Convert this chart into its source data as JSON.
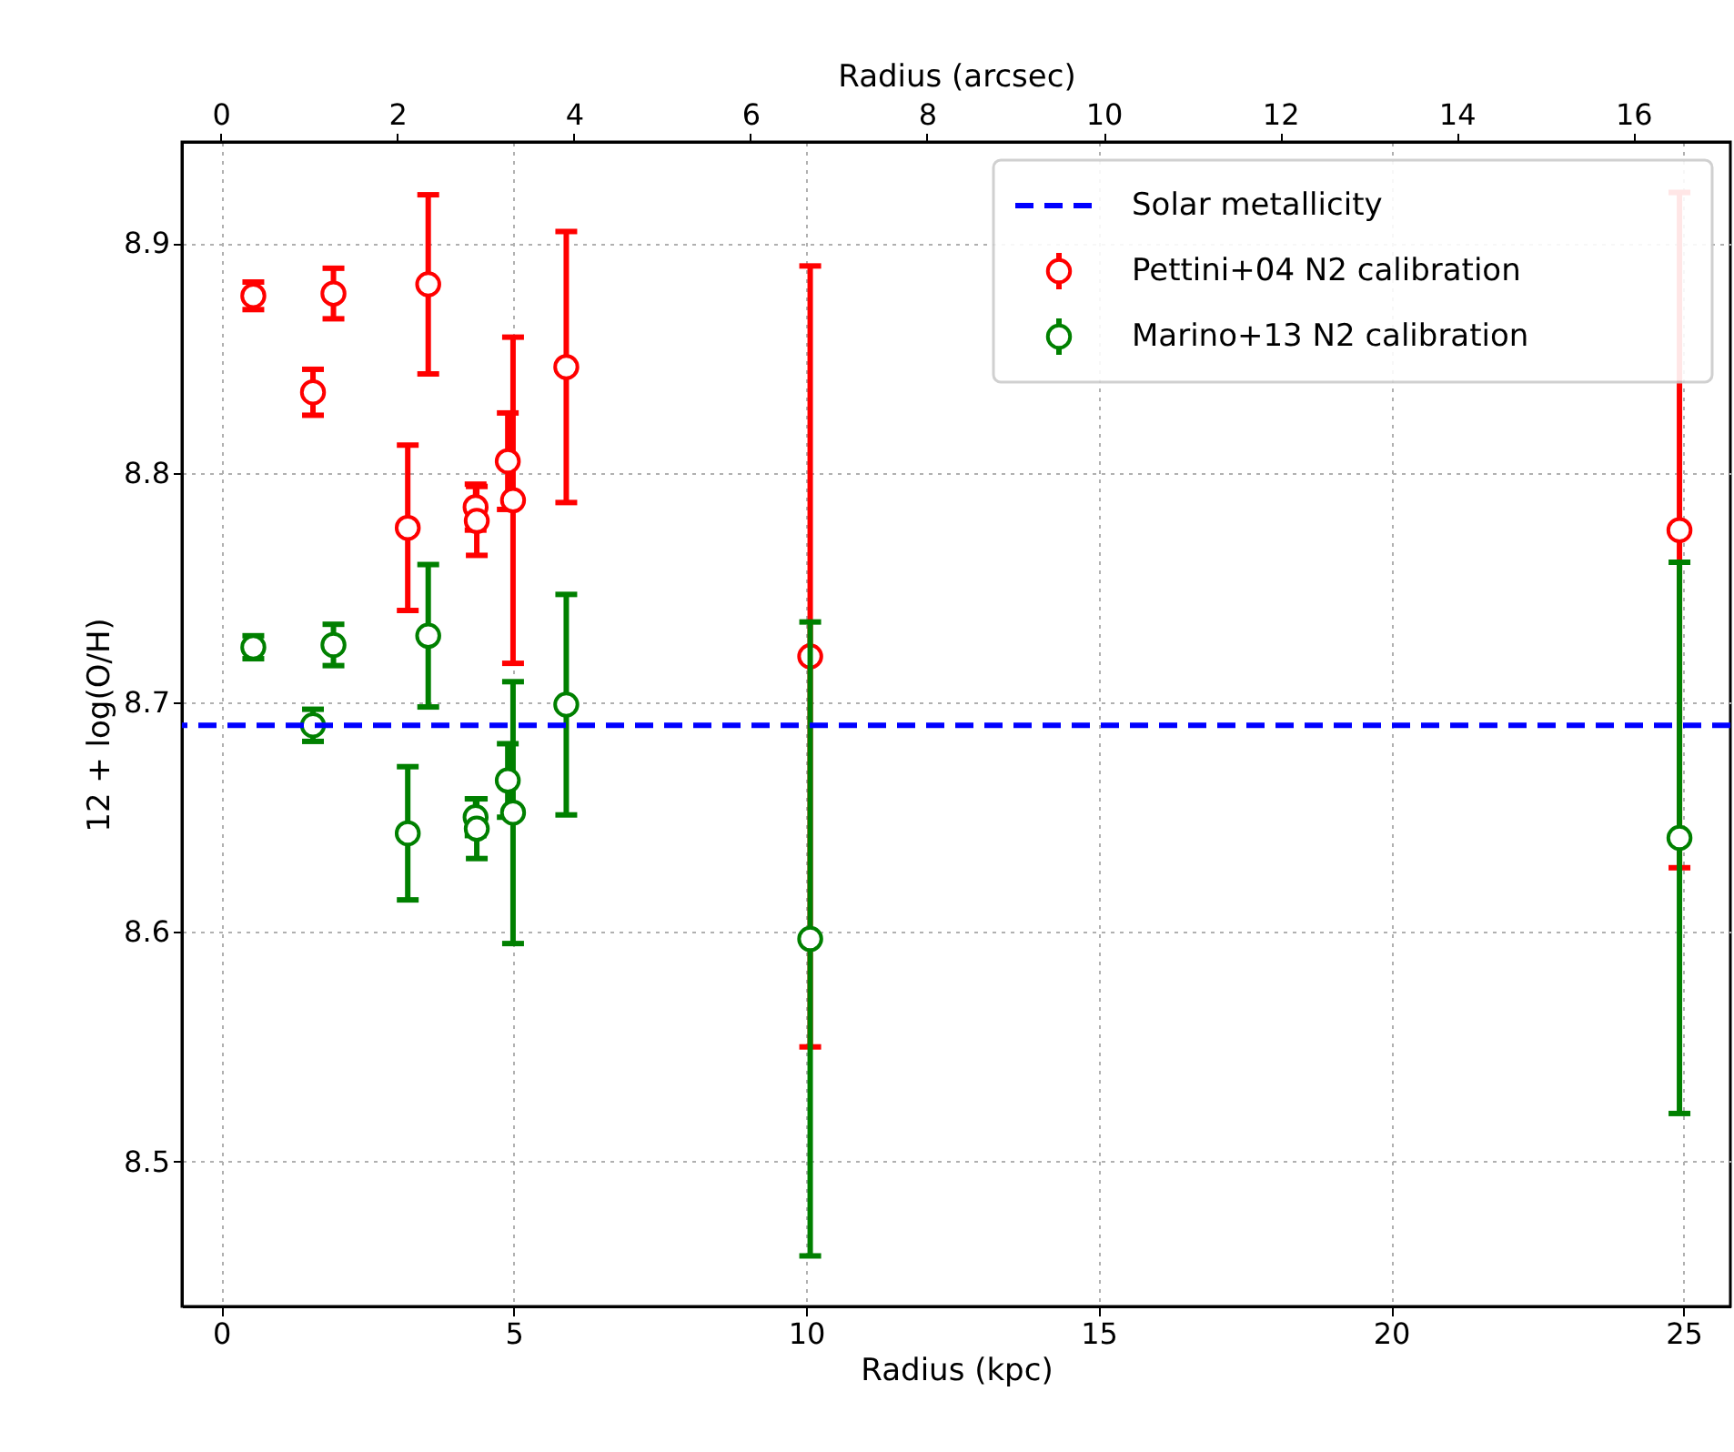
{
  "chart_data": {
    "type": "scatter",
    "xlabel": "Radius (kpc)",
    "ylabel": "12 + log(O/H)",
    "x2label": "Radius (arcsec)",
    "xlim": [
      -0.67,
      25.8
    ],
    "xticks": [
      0,
      5,
      10,
      15,
      20,
      25
    ],
    "x2lim": [
      -0.44,
      17.1
    ],
    "x2ticks": [
      0,
      2,
      4,
      6,
      8,
      10,
      12,
      14,
      16
    ],
    "ylim": [
      8.437,
      8.944
    ],
    "yticks": [
      8.5,
      8.6,
      8.7,
      8.8,
      8.9
    ],
    "grid": true,
    "legend": "top right",
    "marker": "circle",
    "ref_lines": [
      {
        "axis": "y",
        "value": 8.69,
        "label": "Solar metallicity",
        "color": "#0000ff",
        "line_style": "dashed"
      }
    ],
    "series": [
      {
        "name": "Pettini+04 N2 calibration",
        "color": "#ff0000",
        "x": [
          0.55,
          1.57,
          1.92,
          3.19,
          3.54,
          4.35,
          4.37,
          4.9,
          4.99,
          5.9,
          10.07,
          24.93
        ],
        "values": [
          8.877,
          8.835,
          8.878,
          8.776,
          8.882,
          8.785,
          8.779,
          8.805,
          8.788,
          8.846,
          8.72,
          8.775
        ],
        "errors": [
          0.006,
          0.01,
          0.011,
          0.036,
          0.039,
          0.01,
          0.015,
          0.021,
          0.071,
          0.059,
          0.17,
          0.147
        ]
      },
      {
        "name": "Marino+13 N2 calibration",
        "color": "#008000",
        "x": [
          0.55,
          1.57,
          1.92,
          3.19,
          3.54,
          4.35,
          4.37,
          4.9,
          4.99,
          5.9,
          10.07,
          24.93
        ],
        "values": [
          8.724,
          8.69,
          8.725,
          8.643,
          8.729,
          8.65,
          8.645,
          8.666,
          8.652,
          8.699,
          8.597,
          8.641
        ],
        "errors": [
          0.005,
          0.007,
          0.009,
          0.029,
          0.031,
          0.008,
          0.013,
          0.016,
          0.057,
          0.048,
          0.138,
          0.12
        ]
      }
    ]
  }
}
